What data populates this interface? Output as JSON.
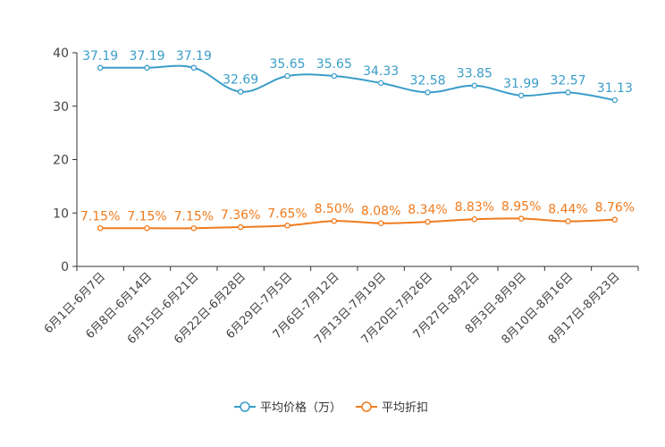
{
  "chart_data": {
    "type": "line",
    "title": "",
    "categories": [
      "6月1日-6月7日",
      "6月8日-6月14日",
      "6月15日-6月21日",
      "6月22日-6月28日",
      "6月29日-7月5日",
      "7月6日-7月12日",
      "7月13日-7月19日",
      "7月20日-7月26日",
      "7月27日-8月2日",
      "8月3日-8月9日",
      "8月10日-8月16日",
      "8月17日-8月23日"
    ],
    "ylim": [
      0,
      40
    ],
    "yticks": [
      0,
      10,
      20,
      30,
      40
    ],
    "series": [
      {
        "name": "平均价格（万）",
        "color": "#3a9dc9",
        "values": [
          37.19,
          37.19,
          37.19,
          32.69,
          35.65,
          35.65,
          34.33,
          32.58,
          33.85,
          31.99,
          32.57,
          31.13
        ],
        "labels": [
          "37.19",
          "37.19",
          "37.19",
          "32.69",
          "35.65",
          "35.65",
          "34.33",
          "32.58",
          "33.85",
          "31.99",
          "32.57",
          "31.13"
        ]
      },
      {
        "name": "平均折扣",
        "color": "#f07b1d",
        "values": [
          7.15,
          7.15,
          7.15,
          7.36,
          7.65,
          8.5,
          8.08,
          8.34,
          8.83,
          8.95,
          8.44,
          8.76
        ],
        "labels": [
          "7.15%",
          "7.15%",
          "7.15%",
          "7.36%",
          "7.65%",
          "8.50%",
          "8.08%",
          "8.34%",
          "8.83%",
          "8.95%",
          "8.44%",
          "8.76%"
        ]
      }
    ],
    "legend_position": "bottom-center"
  }
}
